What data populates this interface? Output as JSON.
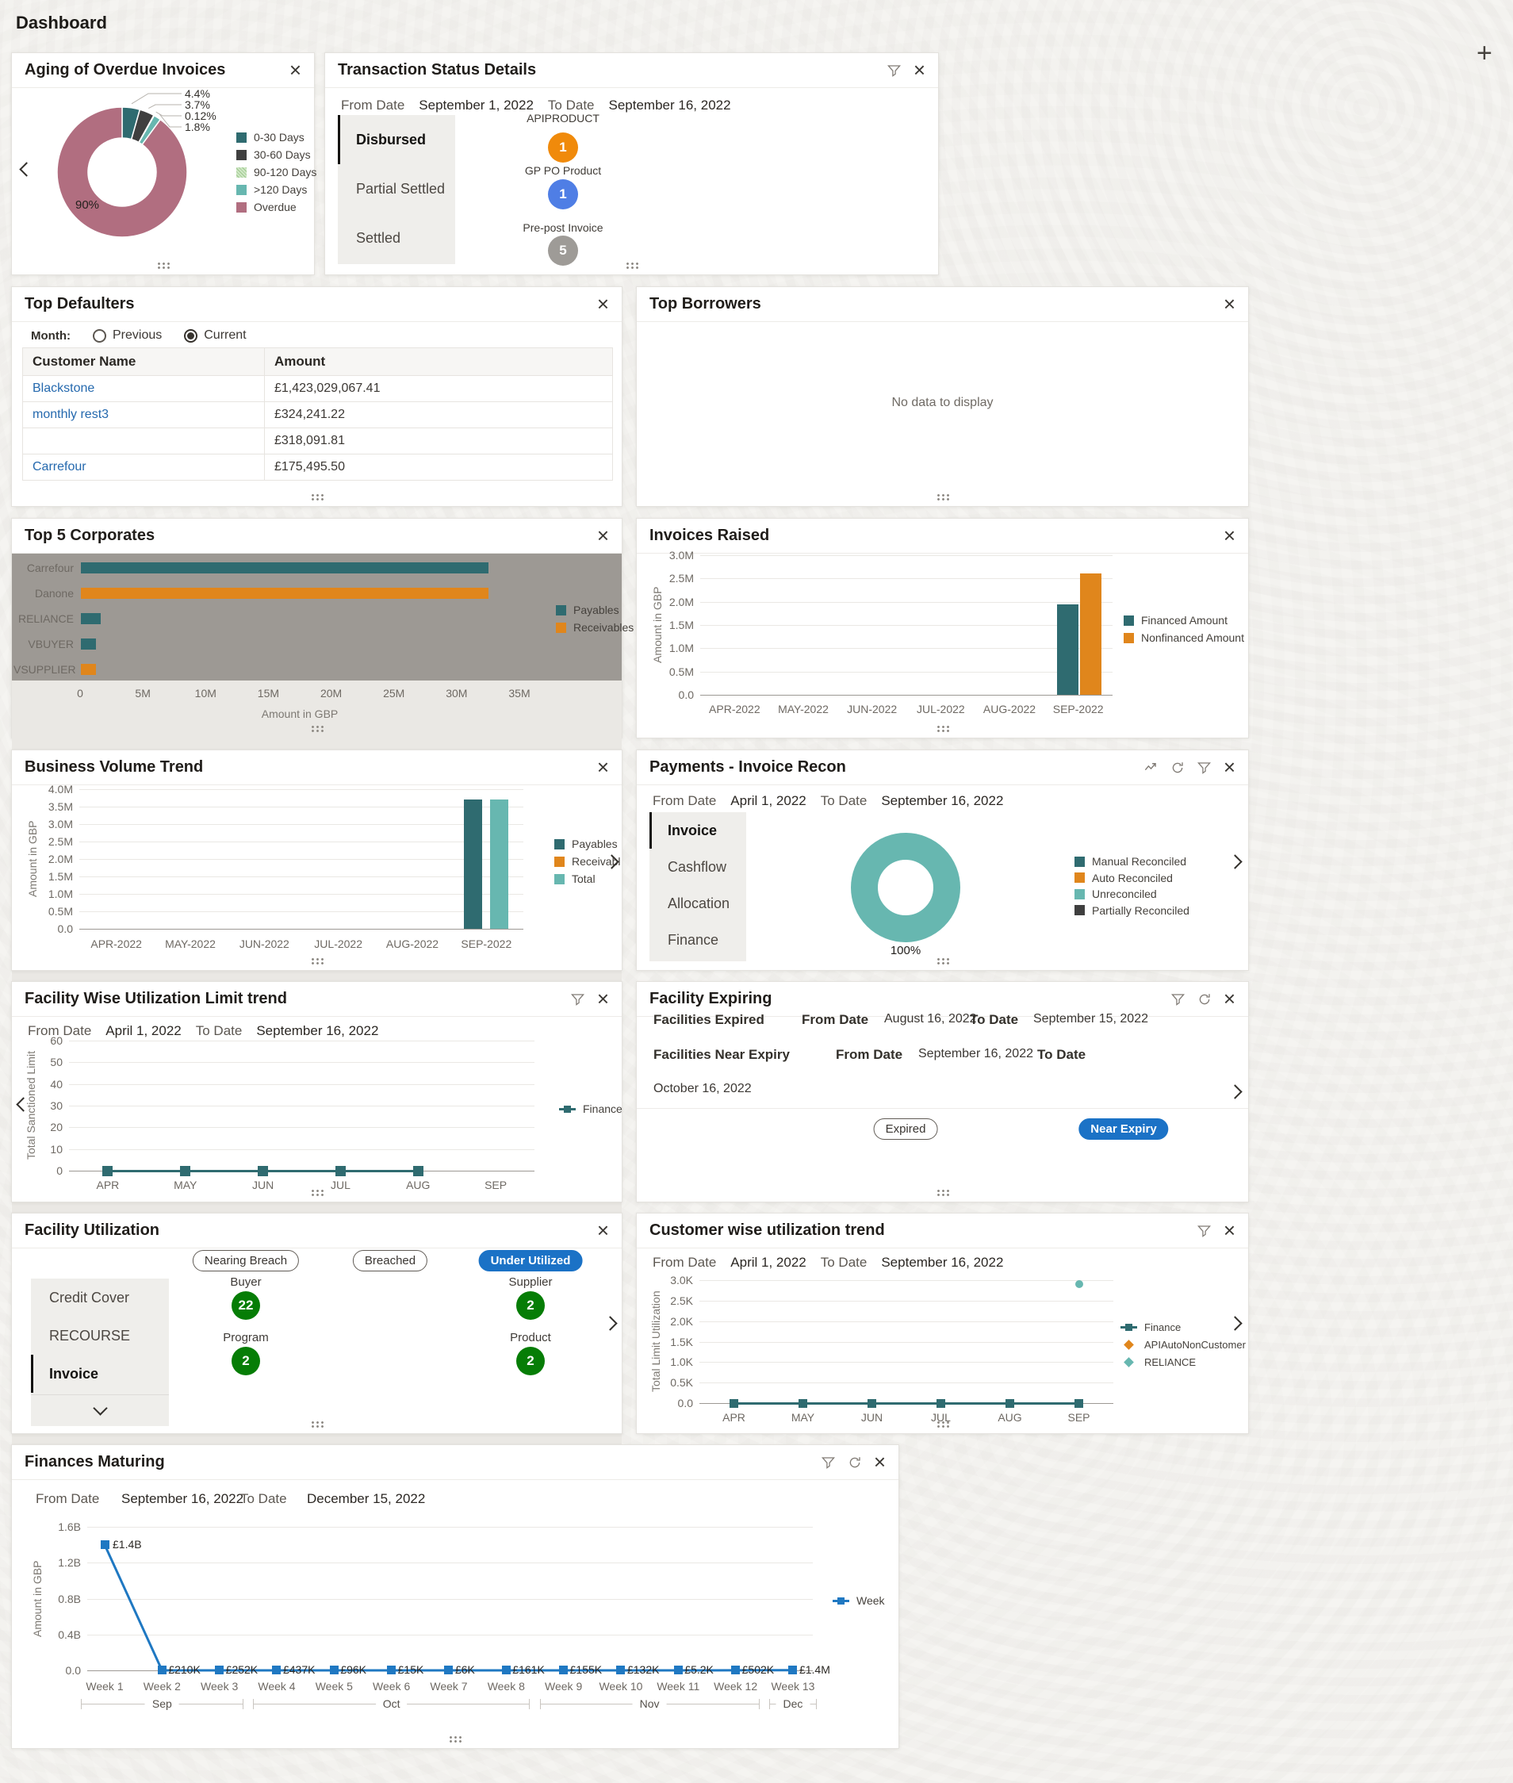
{
  "page": {
    "title": "Dashboard"
  },
  "icons": {
    "close": "×",
    "add": "+",
    "filter": "funnel",
    "refresh": "circular-arrow",
    "trend": "trend-line"
  },
  "colors": {
    "accent_blue": "#1b72c6",
    "badge_green": "#067d06",
    "link_blue": "#2569ae",
    "teal": "#2f6b70",
    "orange": "#e0861c",
    "light_teal": "#67b7b0",
    "mauve": "#b16e80",
    "dark_gray": "#3f3f3f",
    "line_blue": "#1f78c2"
  },
  "widgets": {
    "aging": {
      "title": "Aging of Overdue Invoices",
      "callouts": [
        "4.4%",
        "3.7%",
        "0.12%",
        "1.8%"
      ]
    },
    "transaction_status": {
      "title": "Transaction Status Details",
      "from_date_label": "From Date",
      "from_date": "September 1, 2022",
      "to_date_label": "To Date",
      "to_date": "September 16, 2022",
      "tabs": [
        "Disbursed",
        "Partial Settled",
        "Settled"
      ],
      "active_tab": "Disbursed",
      "products": [
        {
          "name": "APIPRODUCT",
          "count": "1",
          "color": "#f08a0b"
        },
        {
          "name": "GP PO Product",
          "count": "1",
          "color": "#4f7ee5"
        },
        {
          "name": "Pre-post Invoice",
          "count": "5",
          "color": "#9e9b97"
        }
      ]
    },
    "top_defaulters": {
      "title": "Top Defaulters",
      "month_label": "Month:",
      "options": [
        "Previous",
        "Current"
      ],
      "selected": "Current",
      "columns": [
        "Customer Name",
        "Amount"
      ],
      "rows": [
        {
          "name": "Blackstone",
          "amount": "£1,423,029,067.41"
        },
        {
          "name": "monthly rest3",
          "amount": "£324,241.22"
        },
        {
          "name": "",
          "amount": "£318,091.81"
        },
        {
          "name": "Carrefour",
          "amount": "£175,495.50"
        }
      ]
    },
    "top_borrowers": {
      "title": "Top Borrowers",
      "empty_text": "No data to display"
    },
    "top5": {
      "title": "Top 5 Corporates"
    },
    "invoices_raised": {
      "title": "Invoices Raised"
    },
    "business_volume": {
      "title": "Business Volume Trend"
    },
    "payments_recon": {
      "title": "Payments - Invoice Recon",
      "from_date_label": "From Date",
      "from_date": "April 1, 2022",
      "to_date_label": "To Date",
      "to_date": "September 16, 2022",
      "tabs": [
        "Invoice",
        "Cashflow",
        "Allocation",
        "Finance"
      ],
      "active_tab": "Invoice"
    },
    "facility_trend": {
      "title": "Facility Wise Utilization Limit trend",
      "from_date_label": "From Date",
      "from_date": "April 1, 2022",
      "to_date_label": "To Date",
      "to_date": "September 16, 2022"
    },
    "facility_expiring": {
      "title": "Facility Expiring",
      "expired_label": "Facilities Expired",
      "near_label": "Facilities Near Expiry",
      "from_date_label": "From Date",
      "to_date_label": "To Date",
      "expired_from": "August 16, 2022",
      "expired_to": "September 15, 2022",
      "near_from": "September 16, 2022",
      "near_to": "October 16, 2022",
      "buttons": [
        {
          "label": "Expired",
          "style": "outline"
        },
        {
          "label": "Near Expiry",
          "style": "primary"
        }
      ]
    },
    "facility_utilization": {
      "title": "Facility Utilization",
      "tabs": [
        "Credit Cover",
        "RECOURSE",
        "Invoice"
      ],
      "active_tab": "Invoice",
      "groups": [
        {
          "pill": "Nearing Breach",
          "variant": "outline",
          "items": [
            {
              "label": "Buyer",
              "count": "22"
            },
            {
              "label": "Program",
              "count": "2"
            }
          ]
        },
        {
          "pill": "Breached",
          "variant": "outline",
          "items": []
        },
        {
          "pill": "Under Utilized",
          "variant": "primary",
          "items": [
            {
              "label": "Supplier",
              "count": "2"
            },
            {
              "label": "Product",
              "count": "2"
            }
          ]
        }
      ]
    },
    "customer_trend": {
      "title": "Customer wise utilization trend",
      "from_date_label": "From Date",
      "from_date": "April 1, 2022",
      "to_date_label": "To Date",
      "to_date": "September 16, 2022"
    },
    "finances_maturing": {
      "title": "Finances Maturing",
      "from_date_label": "From Date",
      "from_date": "September 16, 2022",
      "to_date_label": "To Date",
      "to_date": "December 15, 2022"
    }
  },
  "chart_data": [
    {
      "widget": "aging",
      "type": "donut",
      "title": "Aging of Overdue Invoices",
      "inner_label": "90%",
      "slices": [
        {
          "label": "0-30 Days",
          "pct": 4.4,
          "color": "#2f6b70"
        },
        {
          "label": "30-60 Days",
          "pct": 3.7,
          "color": "#3f3f3f"
        },
        {
          "label": "90-120 Days",
          "pct": 0.12,
          "color": "#cde6c3"
        },
        {
          "label": ">120 Days",
          "pct": 1.8,
          "color": "#67b7b0"
        },
        {
          "label": "Overdue",
          "pct": 90,
          "color": "#b16e80"
        }
      ]
    },
    {
      "widget": "top5",
      "type": "bar",
      "orientation": "horizontal",
      "title": "Top 5 Corporates",
      "categories": [
        "Carrefour",
        "Danone",
        "RELIANCE",
        "VBUYER",
        "VSUPPLIER"
      ],
      "values": [
        32.5,
        32.5,
        1.6,
        1.2,
        1.2
      ],
      "series_of": [
        "Payables",
        "Receivables",
        "Payables",
        "Payables",
        "Receivables"
      ],
      "unit": "millions GBP",
      "xlim": [
        0,
        35
      ],
      "xticks": [
        "0",
        "5M",
        "10M",
        "15M",
        "20M",
        "25M",
        "30M",
        "35M"
      ],
      "xlabel": "Amount in GBP",
      "legend": [
        {
          "name": "Payables",
          "color": "#2f6b70"
        },
        {
          "name": "Receivables",
          "color": "#e0861c"
        }
      ]
    },
    {
      "widget": "invoices_raised",
      "type": "bar",
      "title": "Invoices Raised",
      "categories": [
        "APR-2022",
        "MAY-2022",
        "JUN-2022",
        "JUL-2022",
        "AUG-2022",
        "SEP-2022"
      ],
      "series": [
        {
          "name": "Financed Amount",
          "color": "#2f6b70",
          "values": [
            0,
            0,
            0,
            0,
            0,
            1.95
          ]
        },
        {
          "name": "Nonfinanced Amount",
          "color": "#e0861c",
          "values": [
            0,
            0,
            0,
            0,
            0,
            2.6
          ]
        }
      ],
      "unit": "millions GBP",
      "ylim": [
        0,
        3
      ],
      "yticks": [
        "3.0M",
        "2.5M",
        "2.0M",
        "1.5M",
        "1.0M",
        "0.5M",
        "0.0"
      ],
      "ylabel": "Amount in GBP"
    },
    {
      "widget": "business_volume",
      "type": "bar",
      "title": "Business Volume Trend",
      "categories": [
        "APR-2022",
        "MAY-2022",
        "JUN-2022",
        "JUL-2022",
        "AUG-2022",
        "SEP-2022"
      ],
      "series": [
        {
          "name": "Payables",
          "color": "#2f6b70",
          "values": [
            0,
            0,
            0,
            0,
            0,
            3.7
          ]
        },
        {
          "name": "Receivables",
          "color": "#e0861c",
          "values": [
            0,
            0,
            0,
            0,
            0,
            0
          ]
        },
        {
          "name": "Total",
          "color": "#67b7b0",
          "values": [
            0,
            0,
            0,
            0,
            0,
            3.7
          ]
        }
      ],
      "unit": "millions GBP",
      "ylim": [
        0,
        4
      ],
      "yticks": [
        "4.0M",
        "3.5M",
        "3.0M",
        "2.5M",
        "2.0M",
        "1.5M",
        "1.0M",
        "0.5M",
        "0.0"
      ],
      "ylabel": "Amount in GBP"
    },
    {
      "widget": "payments_recon",
      "type": "donut",
      "title": "Payments - Invoice Recon",
      "inner_label": "100%",
      "slices": [
        {
          "label": "Unreconciled",
          "pct": 100,
          "color": "#67b7b0"
        }
      ],
      "legend": [
        {
          "name": "Manual Reconciled",
          "color": "#2f6b70"
        },
        {
          "name": "Auto Reconciled",
          "color": "#e0861c"
        },
        {
          "name": "Unreconciled",
          "color": "#67b7b0"
        },
        {
          "name": "Partially Reconciled",
          "color": "#3f3f3f"
        }
      ]
    },
    {
      "widget": "facility_trend",
      "type": "line",
      "title": "Facility Wise Utilization Limit trend",
      "x": [
        "APR",
        "MAY",
        "JUN",
        "JUL",
        "AUG",
        "SEP"
      ],
      "series": [
        {
          "name": "Finance",
          "color": "#2f6b70",
          "values": [
            0,
            0,
            0,
            0,
            0,
            null
          ]
        }
      ],
      "ylim": [
        0,
        60
      ],
      "yticks": [
        "60",
        "50",
        "40",
        "30",
        "20",
        "10",
        "0"
      ],
      "ylabel": "Total Sanctioned Limit"
    },
    {
      "widget": "customer_trend",
      "type": "line",
      "title": "Customer wise utilization trend",
      "x": [
        "APR",
        "MAY",
        "JUN",
        "JUL",
        "AUG",
        "SEP"
      ],
      "series": [
        {
          "name": "Finance",
          "color": "#2f6b70",
          "marker": "line",
          "values": [
            0,
            0,
            0,
            0,
            0,
            0
          ]
        },
        {
          "name": "APIAutoNonCustomer",
          "color": "#e0861c",
          "marker": "diamond",
          "values": [
            null,
            null,
            null,
            null,
            null,
            null
          ]
        },
        {
          "name": "RELIANCE",
          "color": "#67b7b0",
          "marker": "diamond",
          "values": [
            null,
            null,
            null,
            null,
            null,
            2900
          ]
        }
      ],
      "ylim": [
        0,
        3000
      ],
      "yticks": [
        "3.0K",
        "2.5K",
        "2.0K",
        "1.5K",
        "1.0K",
        "0.5K",
        "0.0"
      ],
      "ylabel": "Total Limit Utilization"
    },
    {
      "widget": "finances_maturing",
      "type": "line",
      "title": "Finances Maturing",
      "x": [
        "Week 1",
        "Week 2",
        "Week 3",
        "Week 4",
        "Week 5",
        "Week 6",
        "Week 7",
        "Week 8",
        "Week 9",
        "Week 10",
        "Week 11",
        "Week 12",
        "Week 13"
      ],
      "values": [
        1400000000,
        210000,
        252000,
        437000,
        96000,
        15000,
        6000,
        161000,
        155000,
        132000,
        5200,
        502000,
        1400000
      ],
      "point_labels": [
        "£1.4B",
        "£210K",
        "£252K",
        "£437K",
        "£96K",
        "£15K",
        "£6K",
        "£161K",
        "£155K",
        "£132K",
        "£5.2K",
        "£502K",
        "£1.4M"
      ],
      "ylim": [
        0,
        1600000000
      ],
      "yticks": [
        "1.6B",
        "1.2B",
        "0.8B",
        "0.4B",
        "0.0"
      ],
      "ylabel": "Amount in GBP",
      "legend": [
        {
          "name": "Week",
          "color": "#1f78c2"
        }
      ],
      "month_groups": [
        {
          "label": "Sep",
          "from": 0,
          "to": 2
        },
        {
          "label": "Oct",
          "from": 3,
          "to": 7
        },
        {
          "label": "Nov",
          "from": 8,
          "to": 11
        },
        {
          "label": "Dec",
          "from": 12,
          "to": 12
        }
      ]
    }
  ]
}
